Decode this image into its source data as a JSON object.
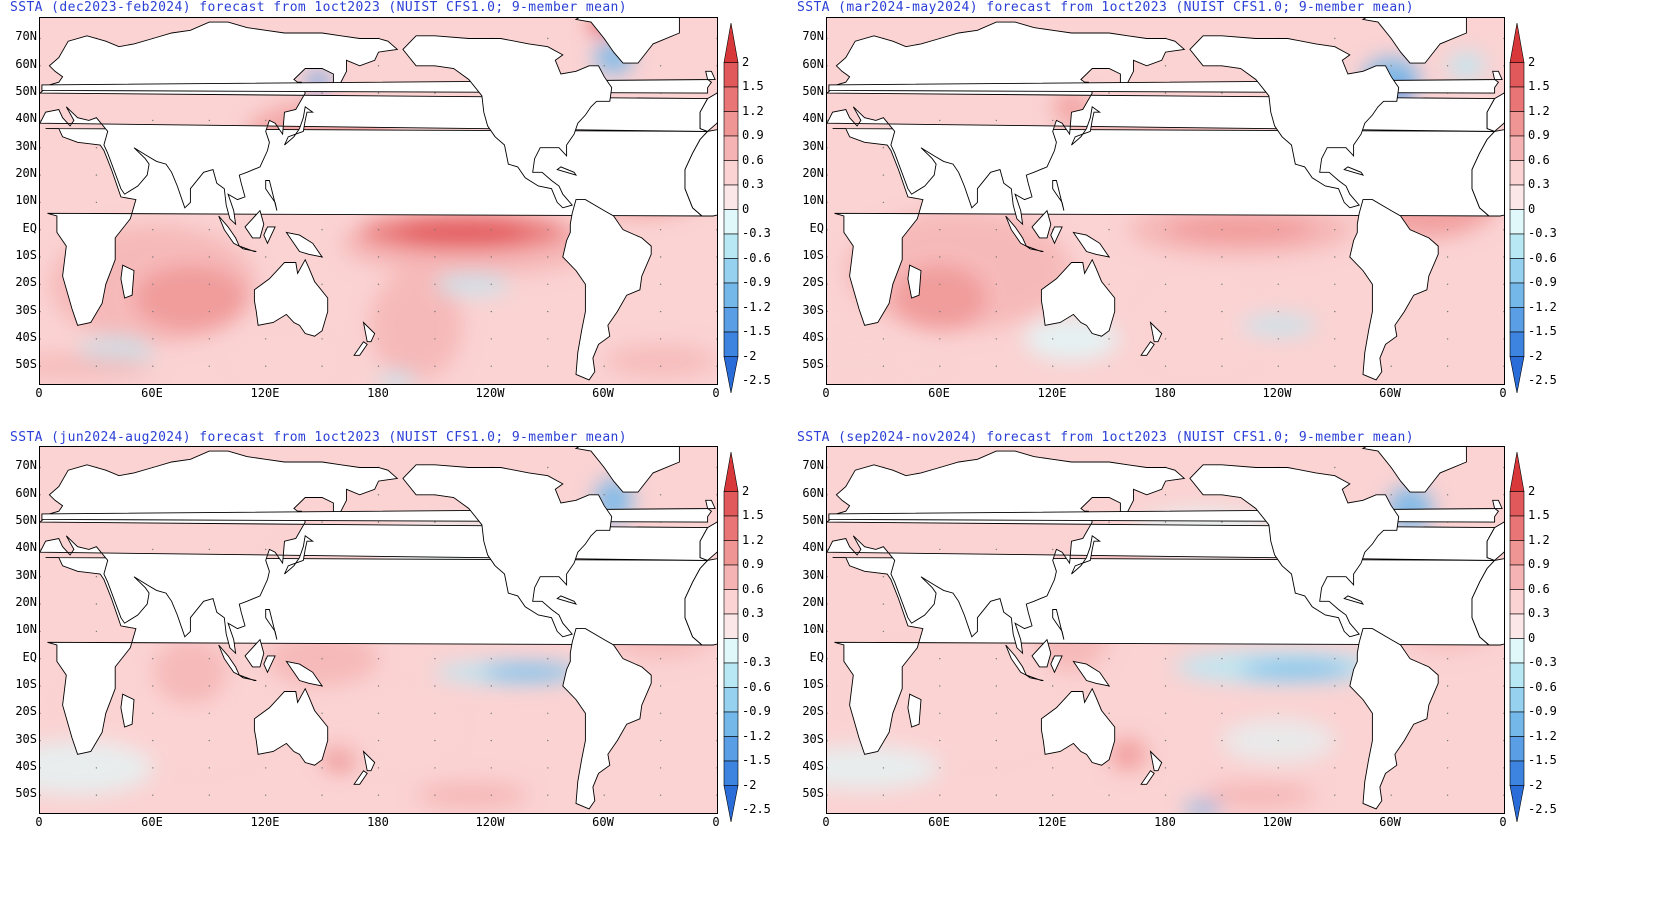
{
  "panels": [
    {
      "title": "SSTA (dec2023-feb2024) forecast from 1oct2023 (NUIST CFS1.0; 9-member mean)",
      "state": "elnino"
    },
    {
      "title": "SSTA (mar2024-may2024) forecast from 1oct2023 (NUIST CFS1.0; 9-member mean)",
      "state": "decay"
    },
    {
      "title": "SSTA (jun2024-aug2024) forecast from 1oct2023 (NUIST CFS1.0; 9-member mean)",
      "state": "neutral"
    },
    {
      "title": "SSTA (sep2024-nov2024) forecast from 1oct2023 (NUIST CFS1.0; 9-member mean)",
      "state": "lanina"
    }
  ],
  "lat_labels": [
    "70N",
    "60N",
    "50N",
    "40N",
    "30N",
    "20N",
    "10N",
    "EQ",
    "10S",
    "20S",
    "30S",
    "40S",
    "50S"
  ],
  "lon_labels": [
    "0",
    "60E",
    "120E",
    "180",
    "120W",
    "60W",
    "0"
  ],
  "colorbar": {
    "labels": [
      "2",
      "1.5",
      "1.2",
      "0.9",
      "0.6",
      "0.3",
      "0",
      "-0.3",
      "-0.6",
      "-0.9",
      "-1.2",
      "-1.5",
      "-2",
      "-2.5"
    ],
    "colors": [
      "#d8383a",
      "#e2595b",
      "#e97576",
      "#ef9594",
      "#f5b3b3",
      "#fbd3d3",
      "#fbe7e7",
      "#e0f8fa",
      "#b8e8f4",
      "#96d2f0",
      "#74b8ea",
      "#5a9fe6",
      "#3d83e0",
      "#2a6cd8"
    ]
  }
}
